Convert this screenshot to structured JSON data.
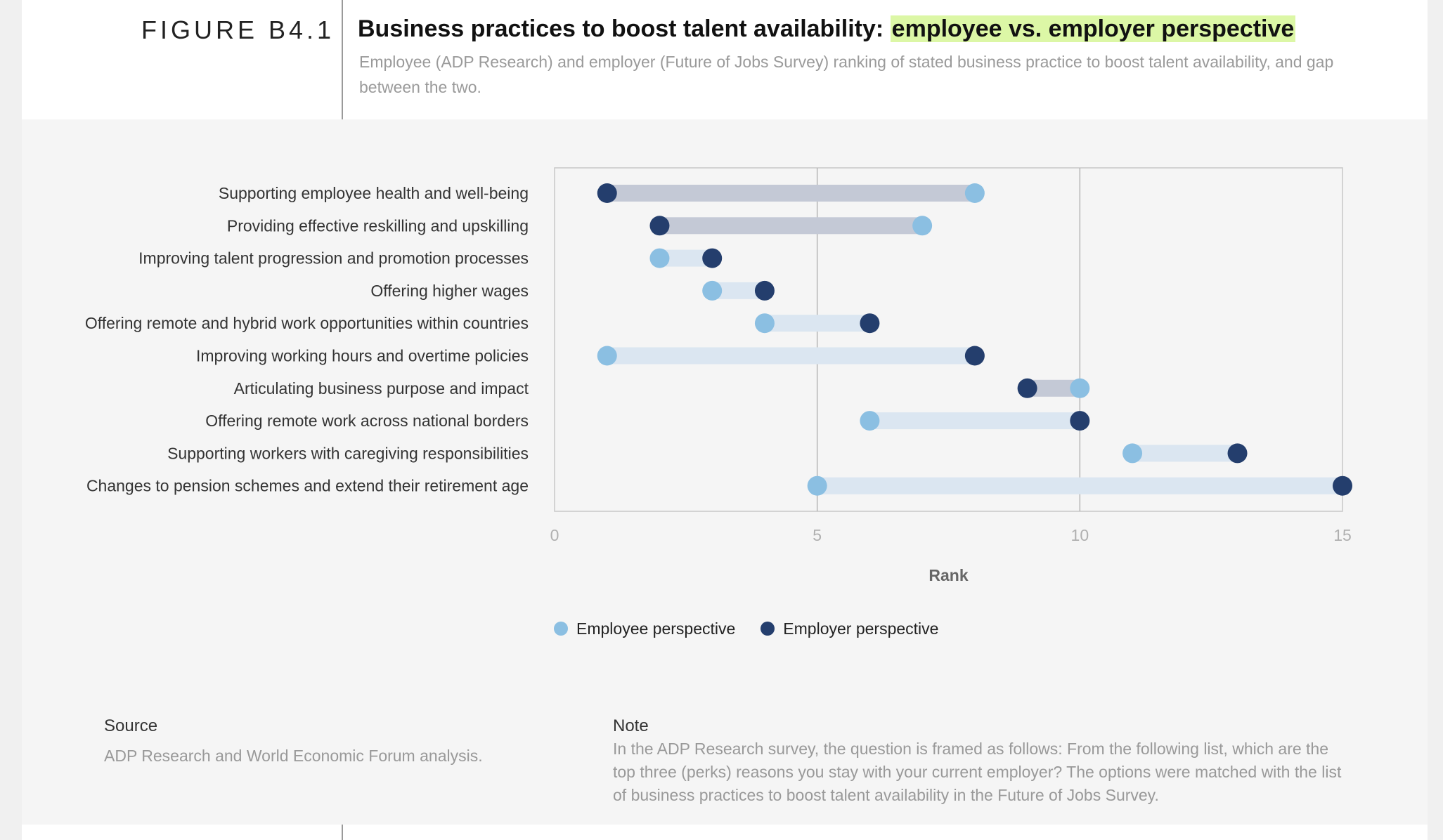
{
  "figure": {
    "label": "FIGURE B4.1",
    "title_main": "Business practices to boost talent availability: ",
    "title_highlight": "employee vs. employer perspective",
    "subtitle": "Employee (ADP Research) and employer (Future of Jobs Survey) ranking of stated business practice to boost talent availability, and gap between the two."
  },
  "colors": {
    "employee": "#8bbfe2",
    "employer": "#243e6d",
    "bar_employer_better": "#c4c9d6",
    "bar_employee_better": "#dbe6f1",
    "highlight": "#dcf7a6"
  },
  "chart_data": {
    "type": "dumbbell",
    "categories": [
      "Supporting employee health and well-being",
      "Providing effective reskilling and upskilling",
      "Improving talent progression and promotion processes",
      "Offering higher wages",
      "Offering remote and hybrid work opportunities within countries",
      "Improving working hours and overtime policies",
      "Articulating business purpose and impact",
      "Offering remote work across national borders",
      "Supporting workers with caregiving responsibilities",
      "Changes to pension schemes and extend their retirement age"
    ],
    "series": [
      {
        "name": "Employee perspective",
        "values": [
          8,
          7,
          2,
          3,
          4,
          1,
          10,
          6,
          11,
          5
        ]
      },
      {
        "name": "Employer perspective",
        "values": [
          1,
          2,
          3,
          4,
          6,
          8,
          9,
          10,
          13,
          15
        ]
      }
    ],
    "xlabel": "Rank",
    "xlim": [
      0,
      15
    ],
    "xticks": [
      0,
      5,
      10,
      15
    ],
    "gridlines": [
      5,
      10
    ],
    "legend_position": "bottom"
  },
  "legend": {
    "employee": "Employee perspective",
    "employer": "Employer perspective"
  },
  "footer": {
    "source_label": "Source",
    "source_text": "ADP Research and World Economic Forum analysis.",
    "note_label": "Note",
    "note_text": "In the ADP Research survey, the question is framed as follows: From the following list, which are the top three (perks) reasons you stay with your current employer? The options were matched with the list of business practices to boost talent availability in the Future of Jobs Survey."
  }
}
